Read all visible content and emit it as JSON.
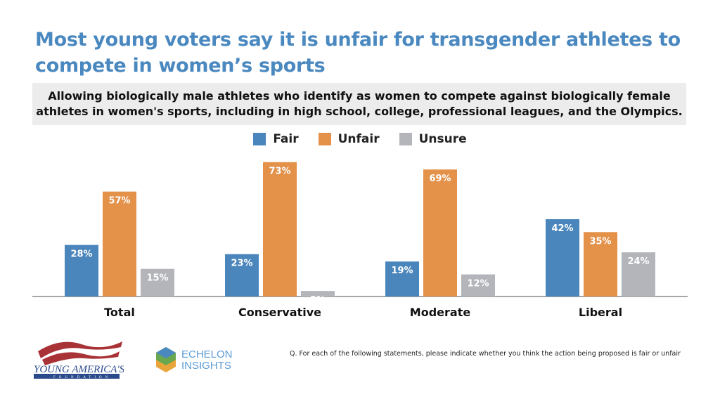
{
  "title": "Most young voters say it is unfair for transgender athletes to compete in women’s sports",
  "subtitle": "Allowing biologically male athletes who identify as women to compete against biologically female athletes in women's sports, including in high school, college, professional leagues, and the Olympics.",
  "footnote": "Q. For each of the following statements, please indicate whether you think the action being proposed is fair or unfair",
  "logos": {
    "left": "YOUNG AMERICA'S FOUNDATION",
    "right": "ECHELON INSIGHTS"
  },
  "chart_data": {
    "type": "bar",
    "categories": [
      "Total",
      "Conservative",
      "Moderate",
      "Liberal"
    ],
    "series": [
      {
        "name": "Fair",
        "values": [
          28,
          23,
          19,
          42
        ],
        "color": "#4a85bb"
      },
      {
        "name": "Unfair",
        "values": [
          57,
          73,
          69,
          35
        ],
        "color": "#e4914a"
      },
      {
        "name": "Unsure",
        "values": [
          15,
          3,
          12,
          24
        ],
        "color": "#b3b5ba"
      }
    ],
    "value_suffix": "%",
    "legend": "top-center",
    "grid": false,
    "ylim": [
      0,
      75
    ]
  }
}
